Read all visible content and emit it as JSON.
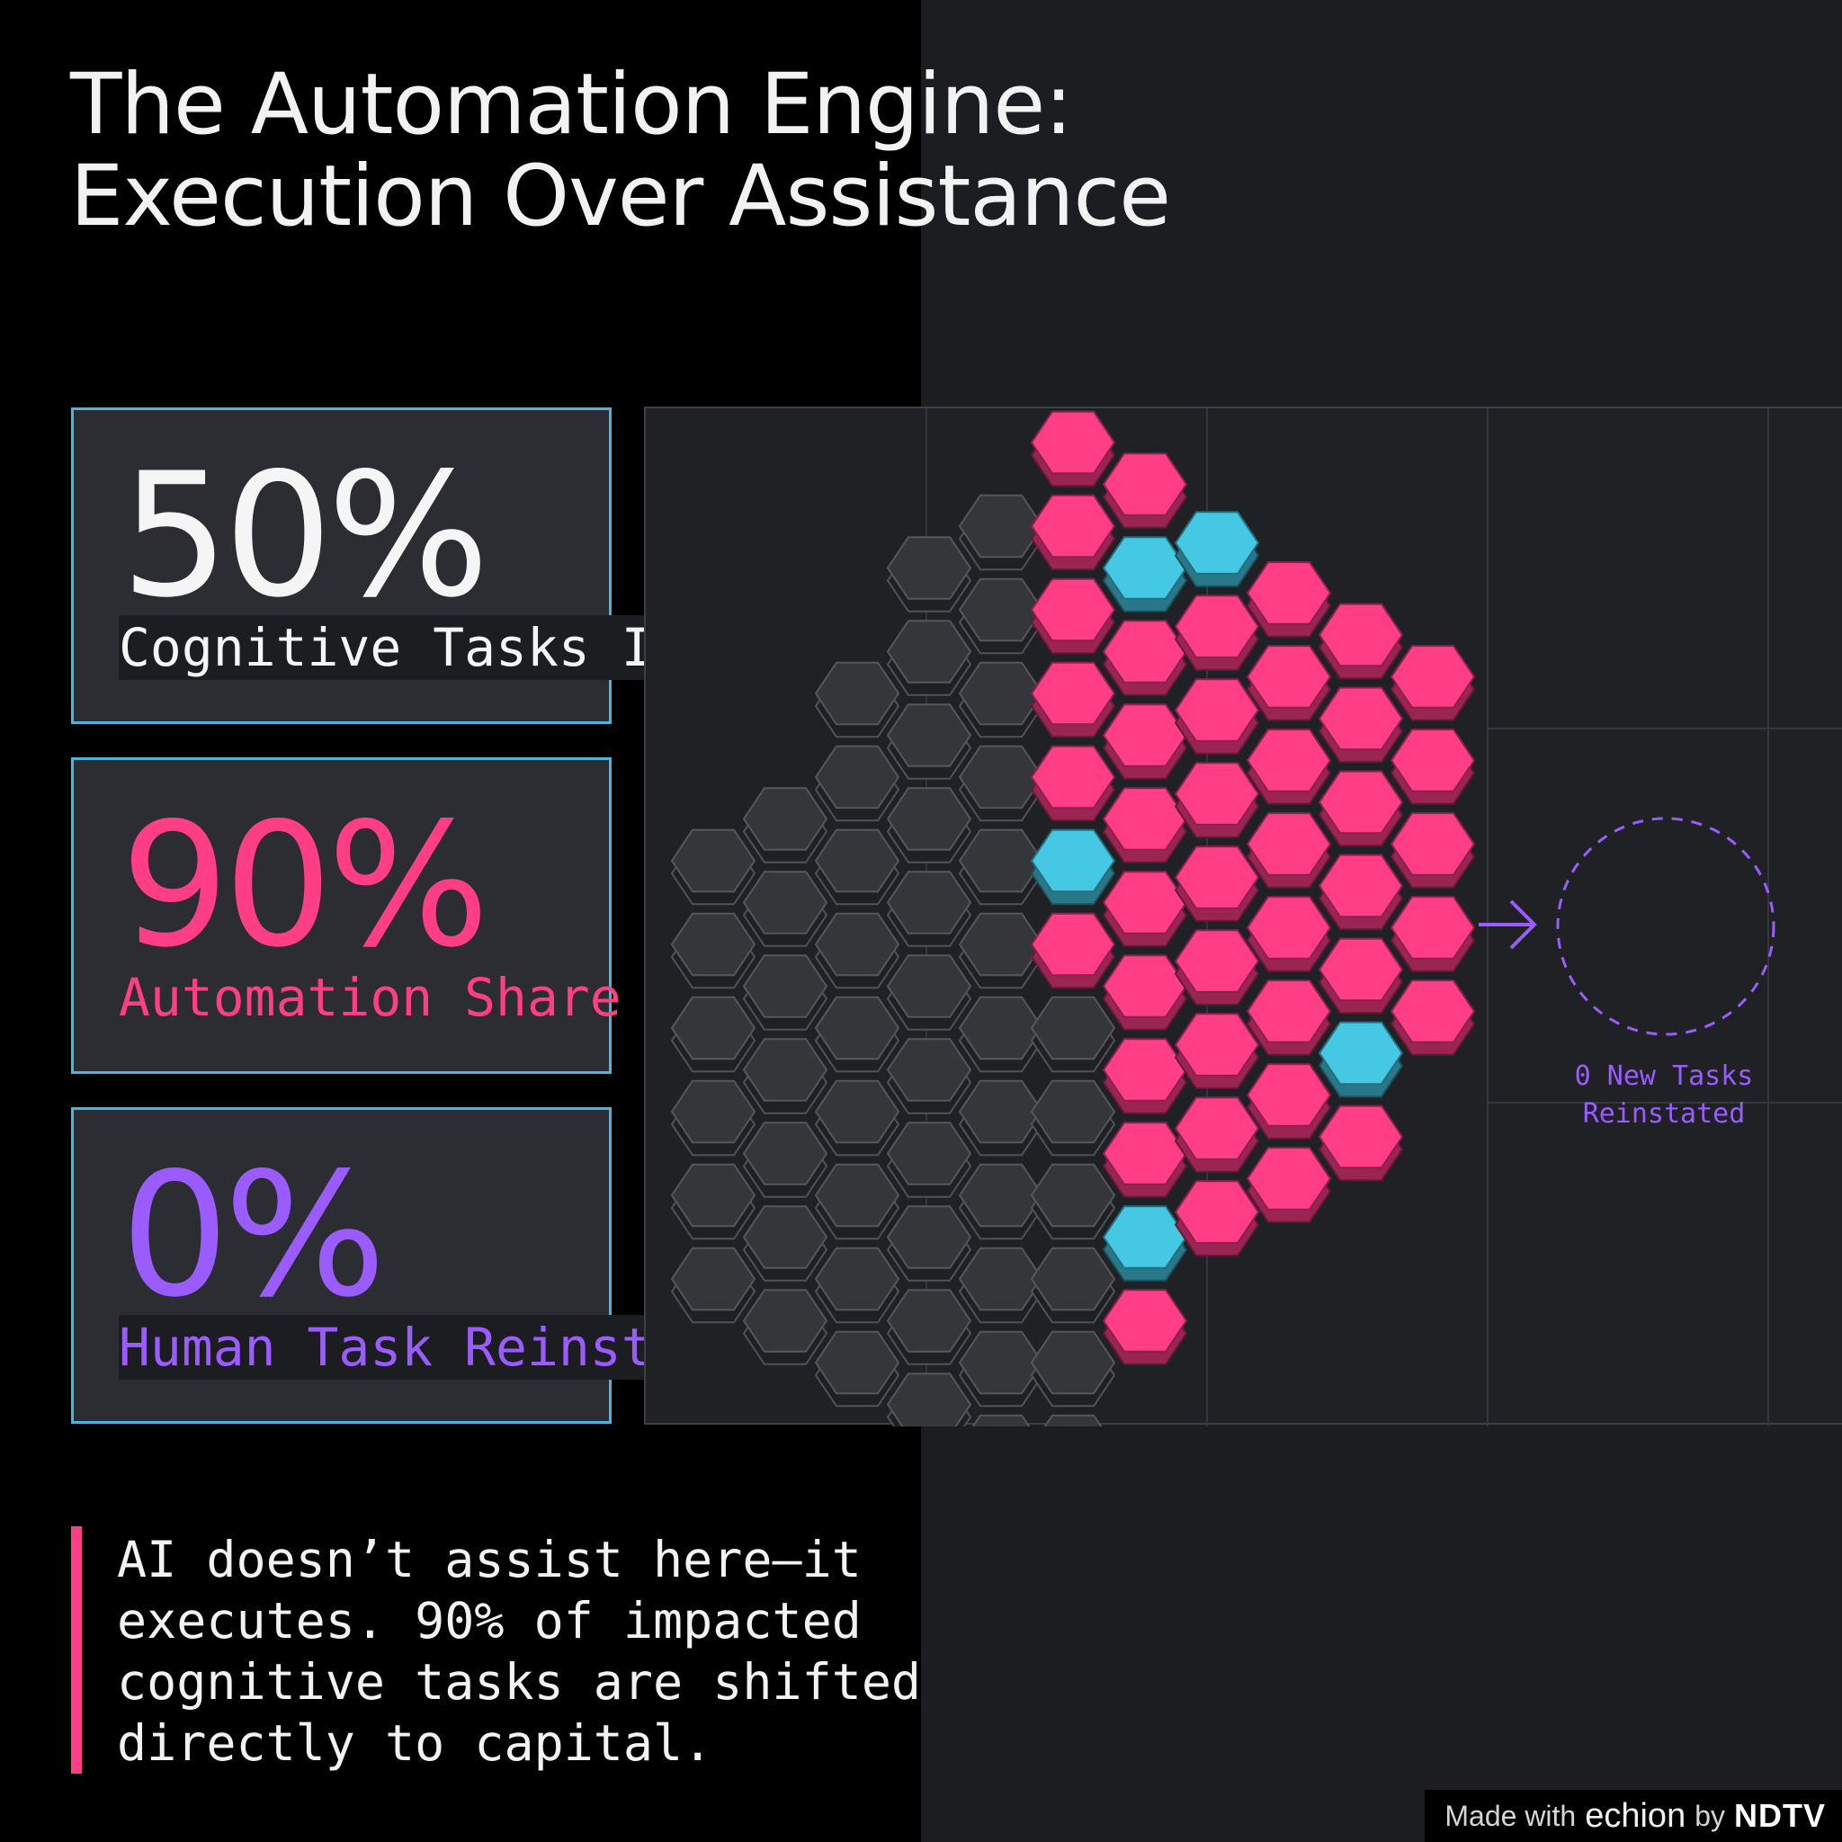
{
  "title": "The Automation Engine: Execution Over Assistance",
  "stats": [
    {
      "value": "50%",
      "label": "Cognitive Tasks Impacted",
      "color": "#f5f5f5"
    },
    {
      "value": "90%",
      "label": "Automation Share",
      "color": "#ff3e85"
    },
    {
      "value": "0%",
      "label": "Human Task Reinstatement",
      "color": "#9b5cff"
    }
  ],
  "graphic": {
    "new_tasks_line1": "0 New Tasks",
    "new_tasks_line2": "Reinstated",
    "colors": {
      "inactive": "#34363a",
      "automated": "#ff3e85",
      "assisted": "#45c8e4",
      "reinstated": "#9b5cff"
    }
  },
  "quote": "AI doesn’t assist here—it executes. 90% of impacted cognitive tasks are shifted directly to capital.",
  "footer": {
    "made_with": "Made with",
    "brand1": "echion",
    "by": "by",
    "brand2": "NDTV"
  }
}
